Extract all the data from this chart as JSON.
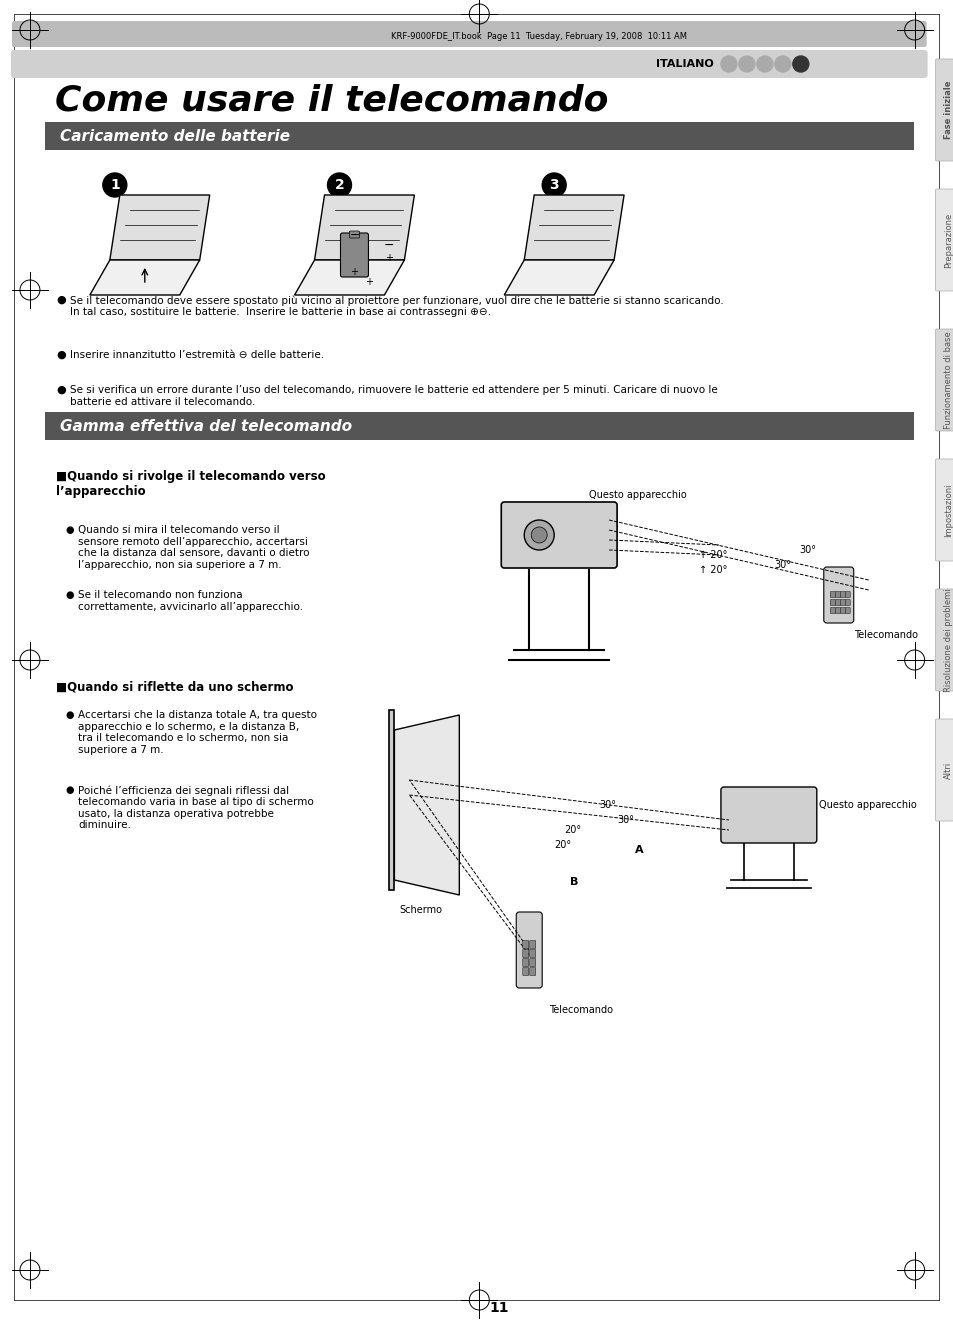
{
  "title": "Come usare il telecomando",
  "header_bar_text": "ITALIANO",
  "section1_title": "Caricamento delle batterie",
  "section2_title": "Gamma effettiva del telecomando",
  "subsection1_title": "Quando si rivolge il telecomando verso\nl’apparecchio",
  "subsection2_title": "Quando si riflette da uno schermo",
  "bullet1_text": "Se il telecomando deve essere spostato più vicino al proiettore per funzionare, vuol dire che le batterie si stanno scaricando.\nIn tal caso, sostituire le batterie.  Inserire le batterie in base ai contrassegni ⊕⊖.",
  "bullet2_text": "Inserire innanzitutto l’estremità ⊖ delle batterie.",
  "bullet3_text": "Se si verifica un errore durante l’uso del telecomando, rimuovere le batterie ed attendere per 5 minuti. Caricare di nuovo le\nbatterie ed attivare il telecomando.",
  "sub1_bullet1": "Quando si mira il telecomando verso il\nsensore remoto dell’apparecchio, accertarsi\nche la distanza dal sensore, davanti o dietro\nl’apparecchio, non sia superiore a 7 m.",
  "sub1_bullet2": "Se il telecomando non funziona\ncorrettamente, avvicinarlo all’apparecchio.",
  "sub2_bullet1": "Accertarsi che la distanza totale A, tra questo\napparecchio e lo schermo, e la distanza B,\ntra il telecomando e lo schermo, non sia\nsuperiore a 7 m.",
  "sub2_bullet2": "Poiché l’efficienza dei segnali riflessi dal\ntelecomando varia in base al tipo di schermo\nusato, la distanza operativa potrebbe\ndiminuire.",
  "label_questo_apparecchio1": "Questo apparecchio",
  "label_telecomando1": "Telecomando",
  "label_questo_apparecchio2": "Questo apparecchio",
  "label_schermo": "Schermo",
  "label_telecomando2": "Telecomando",
  "header_file": "KRF-9000FDE_IT.book  Page 11  Tuesday, February 19, 2008  10:11 AM",
  "page_number": "11",
  "tab_labels": [
    "Fase iniziale",
    "Preparazione",
    "Funzionamento di base",
    "Impostazioni",
    "Risoluzione dei problemi",
    "Altri"
  ],
  "bg_color": "#ffffff",
  "section_bar_color": "#555555",
  "section_text_color": "#ffffff",
  "header_bar_color": "#cccccc",
  "tab_color": "#e0e0e0"
}
